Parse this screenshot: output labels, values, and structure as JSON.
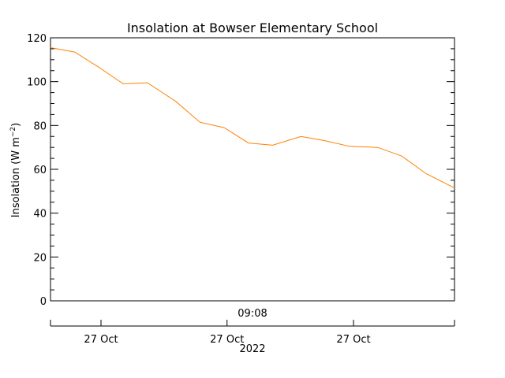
{
  "chart_data": {
    "type": "line",
    "title": "Insolation at Bowser Elementary School",
    "ylabel_main": "Insolation (W m",
    "ylabel_sup": "−2",
    "ylabel_close": ")",
    "ylim": [
      0,
      120
    ],
    "yticks": [
      0,
      20,
      40,
      60,
      80,
      100,
      120
    ],
    "y_minor_step": 5,
    "grid": false,
    "x_time_label": "09:08",
    "x_date_ticks": [
      {
        "label": "27 Oct",
        "x": 0.125
      },
      {
        "label": "27 Oct",
        "x": 0.437
      },
      {
        "label": "27 Oct",
        "x": 0.75
      }
    ],
    "x_year_label": "2022",
    "line_color": "#ff8000",
    "series": [
      {
        "x": [
          0,
          0.06,
          0.12,
          0.18,
          0.24,
          0.31,
          0.37,
          0.43,
          0.49,
          0.55,
          0.62,
          0.68,
          0.74,
          0.81,
          0.87,
          0.93,
          1.0
        ],
        "values": [
          115.5,
          113.5,
          106.5,
          99,
          99.5,
          91,
          81.5,
          79,
          72,
          71,
          75,
          73,
          70.5,
          70,
          66,
          58,
          51.5
        ]
      }
    ]
  }
}
